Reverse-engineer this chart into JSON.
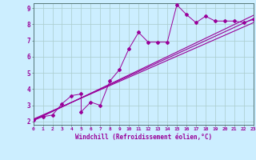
{
  "xlabel": "Windchill (Refroidissement éolien,°C)",
  "bg_color": "#cceeff",
  "line_color": "#990099",
  "grid_color": "#aacccc",
  "xlim": [
    0,
    23
  ],
  "ylim": [
    1.8,
    9.3
  ],
  "xticks": [
    0,
    1,
    2,
    3,
    4,
    5,
    6,
    7,
    8,
    9,
    10,
    11,
    12,
    13,
    14,
    15,
    16,
    17,
    18,
    19,
    20,
    21,
    22,
    23
  ],
  "yticks": [
    2,
    3,
    4,
    5,
    6,
    7,
    8,
    9
  ],
  "scatter_x": [
    0,
    1,
    2,
    3,
    4,
    5,
    5,
    6,
    7,
    8,
    9,
    10,
    11,
    12,
    13,
    14,
    15,
    16,
    17,
    18,
    19,
    20,
    21,
    22,
    23
  ],
  "scatter_y": [
    2.1,
    2.3,
    2.4,
    3.1,
    3.6,
    3.7,
    2.6,
    3.2,
    3.0,
    4.5,
    5.2,
    6.5,
    7.5,
    6.9,
    6.9,
    6.9,
    9.2,
    8.6,
    8.1,
    8.5,
    8.2,
    8.2,
    8.2,
    8.1,
    8.3
  ],
  "line1_x": [
    0,
    23
  ],
  "line1_y": [
    2.1,
    8.35
  ],
  "line2_x": [
    0,
    23
  ],
  "line2_y": [
    2.05,
    8.55
  ],
  "line3_x": [
    0,
    23
  ],
  "line3_y": [
    2.15,
    8.1
  ]
}
